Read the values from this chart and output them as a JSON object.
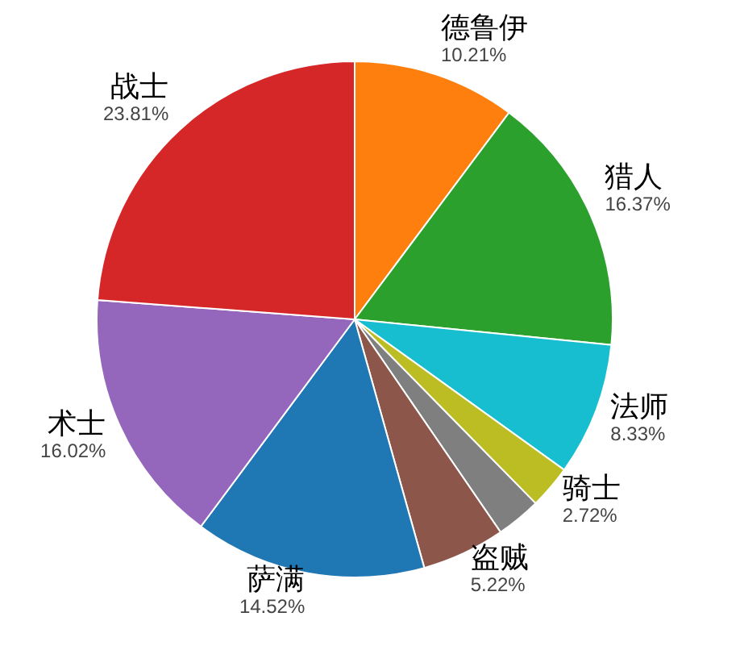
{
  "chart_data": {
    "type": "pie",
    "categories": [
      "德鲁伊",
      "猎人",
      "法师",
      "骑士",
      null,
      "盗贼",
      "萨满",
      "术士",
      "战士"
    ],
    "values": [
      10.21,
      16.37,
      8.33,
      2.72,
      2.8,
      5.22,
      14.52,
      16.02,
      23.81
    ],
    "value_labels": [
      "10.21%",
      "16.37%",
      "8.33%",
      "2.72%",
      null,
      "5.22%",
      "14.52%",
      "16.02%",
      "23.81%"
    ],
    "colors": [
      "#ff7f0e",
      "#2ca02c",
      "#17becf",
      "#bcbd22",
      "#7f7f7f",
      "#8c564b",
      "#1f77b4",
      "#9467bd",
      "#d62728"
    ]
  }
}
